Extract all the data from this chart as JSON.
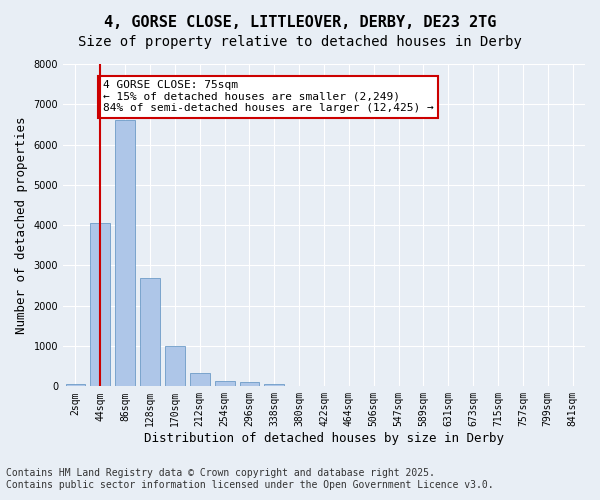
{
  "title_line1": "4, GORSE CLOSE, LITTLEOVER, DERBY, DE23 2TG",
  "title_line2": "Size of property relative to detached houses in Derby",
  "xlabel": "Distribution of detached houses by size in Derby",
  "ylabel": "Number of detached properties",
  "categories": [
    "2sqm",
    "44sqm",
    "86sqm",
    "128sqm",
    "170sqm",
    "212sqm",
    "254sqm",
    "296sqm",
    "338sqm",
    "380sqm",
    "422sqm",
    "464sqm",
    "506sqm",
    "547sqm",
    "589sqm",
    "631sqm",
    "673sqm",
    "715sqm",
    "757sqm",
    "799sqm",
    "841sqm"
  ],
  "values": [
    70,
    4050,
    6600,
    2680,
    1010,
    340,
    130,
    110,
    70,
    0,
    0,
    0,
    0,
    0,
    0,
    0,
    0,
    0,
    0,
    0,
    0
  ],
  "bar_color": "#aec6e8",
  "bar_edge_color": "#5a8fc0",
  "vline_x": 1,
  "vline_color": "#cc0000",
  "annotation_text": "4 GORSE CLOSE: 75sqm\n← 15% of detached houses are smaller (2,249)\n84% of semi-detached houses are larger (12,425) →",
  "annotation_box_color": "#ffffff",
  "annotation_box_edge": "#cc0000",
  "ylim": [
    0,
    8000
  ],
  "yticks": [
    0,
    1000,
    2000,
    3000,
    4000,
    5000,
    6000,
    7000,
    8000
  ],
  "background_color": "#e8eef5",
  "grid_color": "#ffffff",
  "footer_line1": "Contains HM Land Registry data © Crown copyright and database right 2025.",
  "footer_line2": "Contains public sector information licensed under the Open Government Licence v3.0.",
  "title_fontsize": 11,
  "subtitle_fontsize": 10,
  "axis_label_fontsize": 9,
  "tick_fontsize": 7,
  "annotation_fontsize": 8,
  "footer_fontsize": 7
}
